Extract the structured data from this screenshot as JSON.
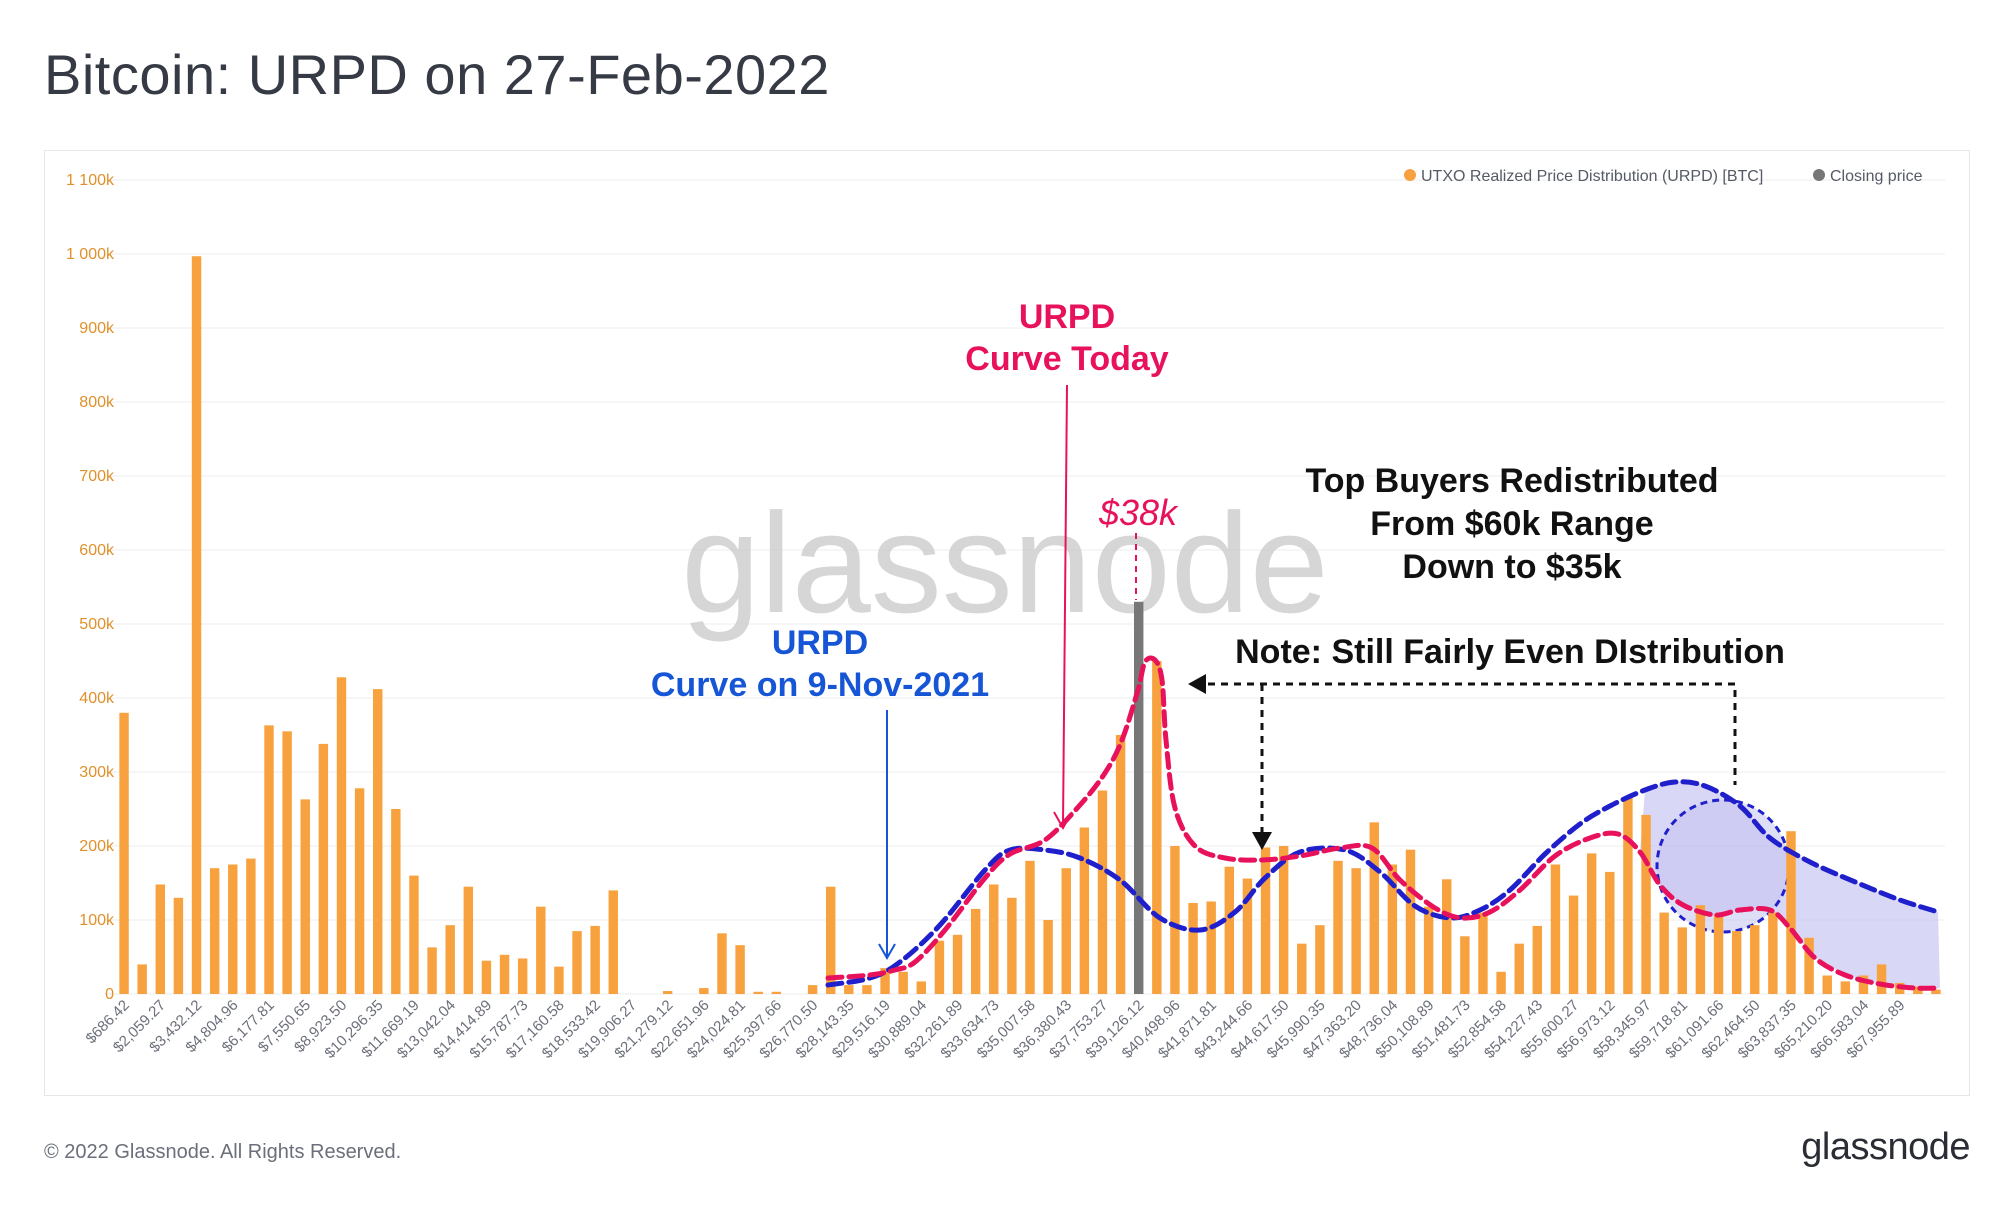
{
  "header": {
    "title": "Bitcoin: URPD on 27-Feb-2022"
  },
  "footer": {
    "copyright": "© 2022 Glassnode. All Rights Reserved.",
    "brand": "glassnode"
  },
  "watermark": "glassnode",
  "colors": {
    "bars": "#f7a23e",
    "closing": "#777777",
    "today_curve": "#e8125c",
    "nov_curve": "#1f1fcc",
    "nov_fill": "#c9c6f2",
    "annotation_red": "#e8125c",
    "annotation_blue": "#1656d6",
    "axis_text": "#e0902a"
  },
  "annotations": {
    "today_label_1": "URPD",
    "today_label_2": "Curve Today",
    "nov_label_1": "URPD",
    "nov_label_2": "Curve on 9-Nov-2021",
    "price_label": "$38k",
    "redistribution_1": "Top Buyers Redistributed",
    "redistribution_2": "From $60k Range",
    "redistribution_3": "Down to $35k",
    "note": "Note: Still Fairly Even DIstribution"
  },
  "chart_data": {
    "type": "bar",
    "title": "Bitcoin: URPD on 27-Feb-2022",
    "xlabel": "",
    "ylabel": "",
    "ylim": [
      0,
      1100000
    ],
    "y_ticks": [
      0,
      100000,
      200000,
      300000,
      400000,
      500000,
      600000,
      700000,
      800000,
      900000,
      1000000,
      1100000
    ],
    "y_tick_labels": [
      "0",
      "100k",
      "200k",
      "300k",
      "400k",
      "500k",
      "600k",
      "700k",
      "800k",
      "900k",
      "1 000k",
      "1 100k"
    ],
    "x_tick_labels": [
      "$686.42",
      "$2,059.27",
      "$3,432.12",
      "$4,804.96",
      "$6,177.81",
      "$7,550.65",
      "$8,923.50",
      "$10,296.35",
      "$11,669.19",
      "$13,042.04",
      "$14,414.89",
      "$15,787.73",
      "$17,160.58",
      "$18,533.42",
      "$19,906.27",
      "$21,279.12",
      "$22,651.96",
      "$24,024.81",
      "$25,397.66",
      "$26,770.50",
      "$28,143.35",
      "$29,516.19",
      "$30,889.04",
      "$32,261.89",
      "$33,634.73",
      "$35,007.58",
      "$36,380.43",
      "$37,753.27",
      "$39,126.12",
      "$40,498.96",
      "$41,871.81",
      "$43,244.66",
      "$44,617.50",
      "$45,990.35",
      "$47,363.20",
      "$48,736.04",
      "$50,108.89",
      "$51,481.73",
      "$52,854.58",
      "$54,227.43",
      "$55,600.27",
      "$56,973.12",
      "$58,345.97",
      "$59,718.81",
      "$61,091.66",
      "$62,464.50",
      "$63,837.35",
      "$65,210.20",
      "$66,583.04",
      "$67,955.89"
    ],
    "legend": [
      "UTXO Realized Price Distribution (URPD) [BTC]",
      "Closing price"
    ],
    "legend_position": "top-right",
    "grid": true,
    "closing_price_bin": 56,
    "values": [
      380000,
      40000,
      148000,
      130000,
      997000,
      170000,
      175000,
      183000,
      363000,
      355000,
      263000,
      338000,
      428000,
      278000,
      412000,
      250000,
      160000,
      63000,
      93000,
      145000,
      45000,
      53000,
      48000,
      118000,
      37000,
      85000,
      92000,
      140000,
      0,
      0,
      4000,
      0,
      8000,
      82000,
      66000,
      3000,
      3000,
      0,
      12000,
      145000,
      12000,
      12000,
      35000,
      30000,
      17000,
      72000,
      80000,
      115000,
      148000,
      130000,
      180000,
      100000,
      170000,
      225000,
      275000,
      350000,
      530000,
      450000,
      200000,
      123000,
      125000,
      172000,
      156000,
      198000,
      200000,
      68000,
      93000,
      180000,
      170000,
      232000,
      175000,
      195000,
      118000,
      155000,
      78000,
      110000,
      30000,
      68000,
      92000,
      175000,
      133000,
      190000,
      165000,
      265000,
      242000,
      110000,
      90000,
      120000,
      108000,
      85000,
      93000,
      110000,
      220000,
      76000,
      25000,
      17000,
      25000,
      40000,
      15000,
      10000,
      6000
    ],
    "series": [
      {
        "name": "UTXO Realized Price Distribution (URPD) [BTC]",
        "type": "bar"
      },
      {
        "name": "Closing price",
        "type": "bar"
      }
    ]
  }
}
